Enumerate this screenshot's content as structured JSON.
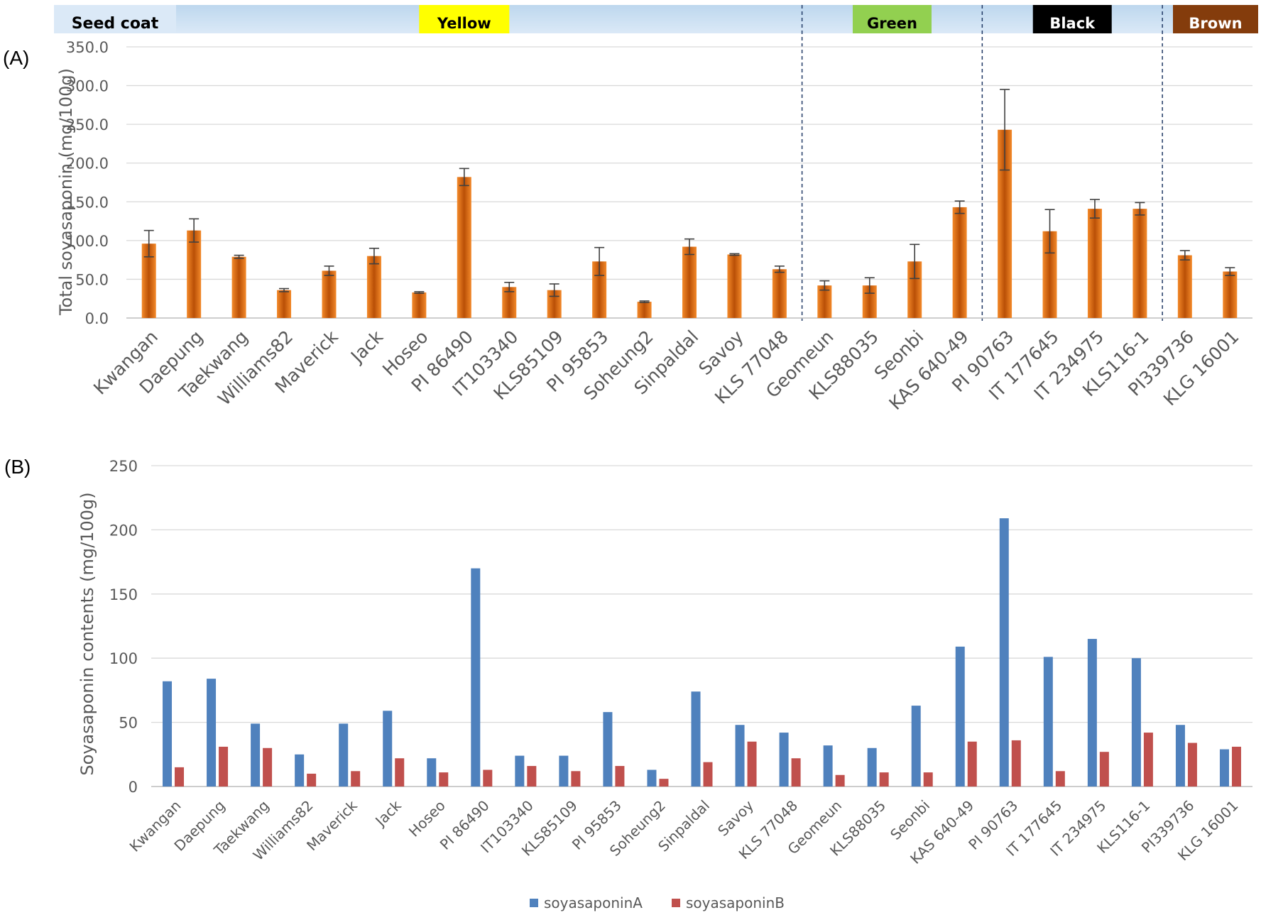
{
  "panel_labels": {
    "a": "(A)",
    "b": "(B)"
  },
  "seed_coat": {
    "label": "Seed coat",
    "groups": [
      {
        "label": "Yellow",
        "color": "#ffff00",
        "text_color": "#000000",
        "count": 15
      },
      {
        "label": "Green",
        "color": "#92d050",
        "text_color": "#000000",
        "count": 4
      },
      {
        "label": "Black",
        "color": "#000000",
        "text_color": "#ffffff",
        "count": 4
      },
      {
        "label": "Brown",
        "color": "#843c0c",
        "text_color": "#ffffff",
        "count": 2
      }
    ]
  },
  "chart_data": [
    {
      "type": "bar",
      "title": "",
      "xlabel": "",
      "ylabel": "Total  soyasaponin (mg/100g)",
      "ylim": [
        0,
        350
      ],
      "yticks": [
        "0.0",
        "50.0",
        "100.0",
        "150.0",
        "200.0",
        "250.0",
        "300.0",
        "350.0"
      ],
      "ytick_values": [
        0,
        50,
        100,
        150,
        200,
        250,
        300,
        350
      ],
      "grid": true,
      "bar_color": "#f07818",
      "categories": [
        "Kwangan",
        "Daepung",
        "Taekwang",
        "Williams82",
        "Maverick",
        "Jack",
        "Hoseo",
        "PI 86490",
        "IT103340",
        "KLS85109",
        "PI 95853",
        "Soheung2",
        "Sinpaldal",
        "Savoy",
        "KLS 77048",
        "Geomeun",
        "KLS88035",
        "Seonbi",
        "KAS 640-49",
        "PI 90763",
        "IT 177645",
        "IT 234975",
        "KLS116-1",
        "PI339736",
        "KLG 16001"
      ],
      "values": [
        96,
        113,
        79,
        36,
        61,
        80,
        33,
        182,
        40,
        36,
        73,
        21,
        92,
        82,
        63,
        42,
        42,
        73,
        143,
        243,
        112,
        141,
        141,
        81,
        60
      ],
      "errors": [
        17,
        15,
        2,
        2,
        6,
        10,
        1,
        11,
        6,
        8,
        18,
        1,
        10,
        1,
        4,
        6,
        10,
        22,
        8,
        52,
        28,
        12,
        8,
        6,
        5
      ]
    },
    {
      "type": "bar",
      "title": "",
      "xlabel": "",
      "ylabel": "Soyasaponin contents (mg/100g)",
      "ylim": [
        0,
        250
      ],
      "yticks": [
        "0",
        "50",
        "100",
        "150",
        "200",
        "250"
      ],
      "ytick_values": [
        0,
        50,
        100,
        150,
        200,
        250
      ],
      "grid": true,
      "legend_position": "bottom-center",
      "categories": [
        "Kwangan",
        "Daepung",
        "Taekwang",
        "Williams82",
        "Maverick",
        "Jack",
        "Hoseo",
        "PI 86490",
        "IT103340",
        "KLS85109",
        "PI 95853",
        "Soheung2",
        "Sinpaldal",
        "Savoy",
        "KLS 77048",
        "Geomeun",
        "KLS88035",
        "Seonbi",
        "KAS 640-49",
        "PI 90763",
        "IT 177645",
        "IT 234975",
        "KLS116-1",
        "PI339736",
        "KLG 16001"
      ],
      "series": [
        {
          "name": "soyasaponinA",
          "color": "#4f81bd",
          "values": [
            82,
            84,
            49,
            25,
            49,
            59,
            22,
            170,
            24,
            24,
            58,
            13,
            74,
            48,
            42,
            32,
            30,
            63,
            109,
            209,
            101,
            115,
            100,
            48,
            29
          ]
        },
        {
          "name": "soyasaponinB",
          "color": "#c0504d",
          "values": [
            15,
            31,
            30,
            10,
            12,
            22,
            11,
            13,
            16,
            12,
            16,
            6,
            19,
            35,
            22,
            9,
            11,
            11,
            35,
            36,
            12,
            27,
            42,
            34,
            31
          ]
        }
      ]
    }
  ]
}
